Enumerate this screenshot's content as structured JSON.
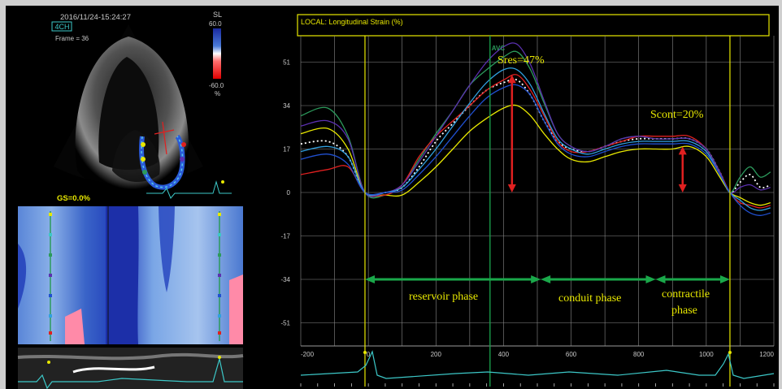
{
  "left_panel": {
    "timestamp": "2016/11/24-15:24:27",
    "view_badge": "4CH",
    "frame_label": "Frame = 36",
    "scale_title": "SL",
    "scale_max": "60.0",
    "scale_min": "-60.0",
    "scale_unit": "%",
    "global_strain": "GS=0.0%"
  },
  "chart_data": {
    "type": "line",
    "title": "LOCAL: Longitudinal Strain (%)",
    "xlabel": "",
    "ylabel": "",
    "xlim": [
      -200,
      1200
    ],
    "ylim": [
      -60,
      60
    ],
    "x_ticks": [
      -200,
      0,
      200,
      400,
      600,
      800,
      1000,
      1200
    ],
    "y_ticks": [
      51,
      34,
      17,
      0,
      -17,
      -34,
      -51
    ],
    "grid": true,
    "markers": {
      "avc_label": "AVC",
      "avc_x": 360,
      "phase_lines_x": [
        -10,
        1070
      ]
    },
    "x": [
      -200,
      -120,
      -60,
      -10,
      50,
      100,
      150,
      200,
      250,
      300,
      350,
      400,
      440,
      480,
      520,
      560,
      600,
      650,
      700,
      750,
      800,
      850,
      900,
      950,
      1000,
      1040,
      1070,
      1100,
      1130,
      1160,
      1190
    ],
    "series": [
      {
        "color": "#ffffff",
        "dashed": true,
        "values": [
          19,
          20,
          14,
          0,
          0,
          2,
          10,
          20,
          27,
          34,
          40,
          43,
          44,
          38,
          28,
          20,
          17,
          16,
          18,
          20,
          21,
          21,
          21,
          21,
          17,
          8,
          0,
          4,
          7,
          2,
          3
        ]
      },
      {
        "color": "#2c9a5c",
        "dashed": false,
        "values": [
          30,
          33,
          22,
          0,
          -1,
          3,
          13,
          23,
          32,
          42,
          48,
          53,
          55,
          48,
          35,
          23,
          18,
          16,
          18,
          21,
          22,
          21,
          21,
          21,
          17,
          8,
          0,
          6,
          10,
          6,
          8
        ]
      },
      {
        "color": "#e8e800",
        "dashed": false,
        "values": [
          23,
          25,
          17,
          0,
          -1,
          -1,
          4,
          10,
          17,
          24,
          29,
          33,
          34,
          30,
          23,
          17,
          13,
          12,
          14,
          16,
          17,
          17,
          17,
          18,
          14,
          6,
          0,
          -2,
          -4,
          -5,
          -4
        ]
      },
      {
        "color": "#e02020",
        "dashed": false,
        "values": [
          7,
          9,
          10,
          0,
          -1,
          3,
          14,
          22,
          28,
          34,
          40,
          44,
          46,
          40,
          30,
          20,
          16,
          16,
          18,
          20,
          22,
          22,
          22,
          22,
          17,
          8,
          0,
          -4,
          -5,
          -6,
          -5
        ]
      },
      {
        "color": "#5b30b0",
        "dashed": false,
        "values": [
          26,
          28,
          21,
          0,
          0,
          3,
          12,
          22,
          32,
          42,
          51,
          57,
          58,
          50,
          36,
          23,
          18,
          16,
          18,
          21,
          22,
          21,
          21,
          21,
          17,
          8,
          0,
          2,
          3,
          1,
          2
        ]
      },
      {
        "color": "#30a0e0",
        "dashed": false,
        "values": [
          16,
          18,
          14,
          0,
          0,
          2,
          9,
          17,
          26,
          35,
          43,
          48,
          48,
          42,
          31,
          21,
          17,
          15,
          17,
          19,
          20,
          20,
          20,
          20,
          16,
          7,
          0,
          -3,
          -6,
          -7,
          -6
        ]
      },
      {
        "color": "#2050d0",
        "dashed": false,
        "values": [
          13,
          15,
          11,
          0,
          0,
          1,
          7,
          14,
          22,
          30,
          37,
          41,
          42,
          38,
          28,
          19,
          15,
          14,
          16,
          18,
          19,
          19,
          19,
          19,
          15,
          7,
          0,
          -5,
          -8,
          -9,
          -8
        ]
      }
    ],
    "annotations": {
      "sres": "Sres=47%",
      "scont": "Scont=20%",
      "reservoir": "reservoir  phase",
      "conduit": "conduit phase",
      "contractile_1": "contractile",
      "contractile_2": "phase"
    },
    "arrows": {
      "sres": {
        "x": 425,
        "y_from": 46,
        "y_to": 0
      },
      "scont": {
        "x": 930,
        "y_from": 18,
        "y_to": 0
      },
      "reservoir": {
        "x_from": -10,
        "x_to": 510
      },
      "conduit": {
        "x_from": 510,
        "x_to": 850
      },
      "contractile": {
        "x_from": 850,
        "x_to": 1070
      }
    }
  }
}
